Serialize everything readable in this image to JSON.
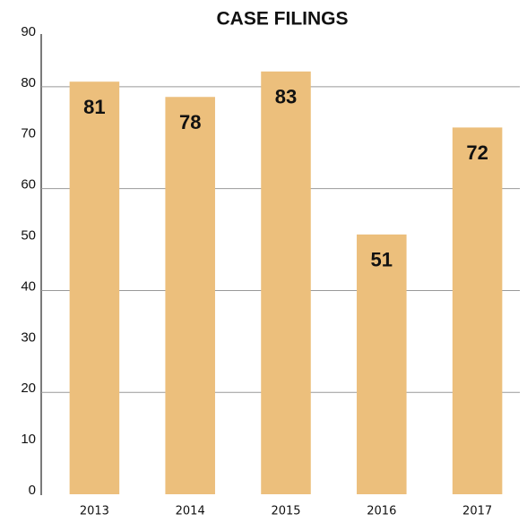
{
  "chart_data": {
    "type": "bar",
    "title": "CASE FILINGS",
    "categories": [
      "2013",
      "2014",
      "2015",
      "2016",
      "2017"
    ],
    "values": [
      81,
      78,
      83,
      51,
      72
    ],
    "color": "#ecbf7c",
    "ylim": [
      0,
      90
    ],
    "yticks": [
      0,
      10,
      20,
      30,
      40,
      50,
      60,
      70,
      80,
      90
    ],
    "grid": true
  }
}
